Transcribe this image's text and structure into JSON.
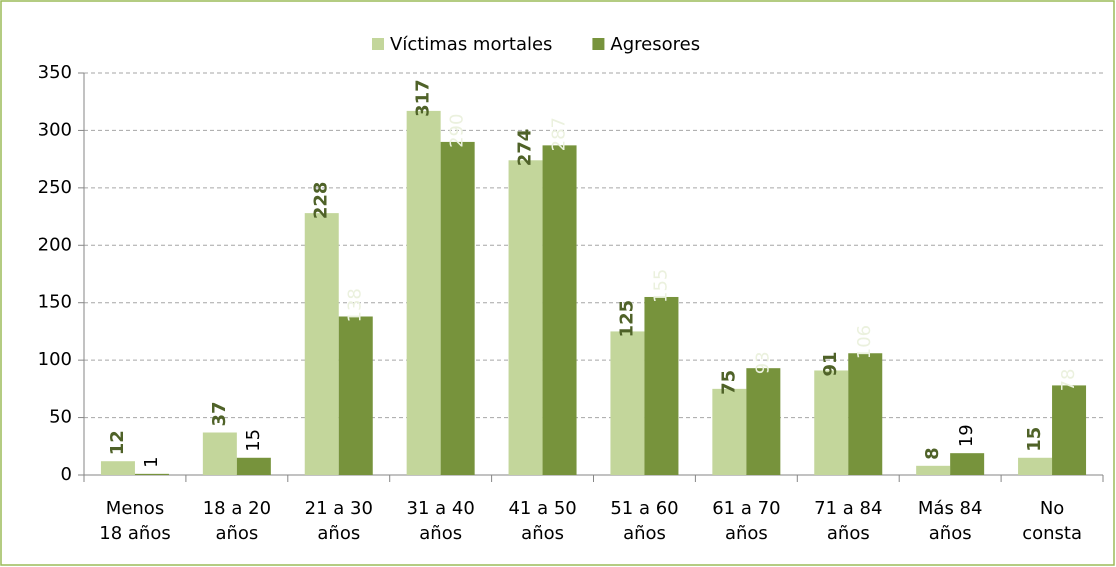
{
  "chart_data": {
    "type": "bar",
    "categories": [
      "Menos\n18 años",
      "18 a 20\naños",
      "21 a 30\naños",
      "31 a 40\naños",
      "41 a 50\naños",
      "51 a 60\naños",
      "61 a 70\naños",
      "71 a 84\naños",
      "Más 84\naños",
      "No\nconsta"
    ],
    "series": [
      {
        "name": "Víctimas mortales",
        "color": "#c3d69b",
        "values": [
          12,
          37,
          228,
          317,
          274,
          125,
          75,
          91,
          8,
          15
        ]
      },
      {
        "name": "Agresores",
        "color": "#77933c",
        "values": [
          1,
          15,
          138,
          290,
          287,
          155,
          93,
          106,
          19,
          78
        ]
      }
    ],
    "ylim": [
      0,
      350
    ],
    "yticks": [
      0,
      50,
      100,
      150,
      200,
      250,
      300,
      350
    ],
    "grid": true,
    "legend": "top"
  }
}
